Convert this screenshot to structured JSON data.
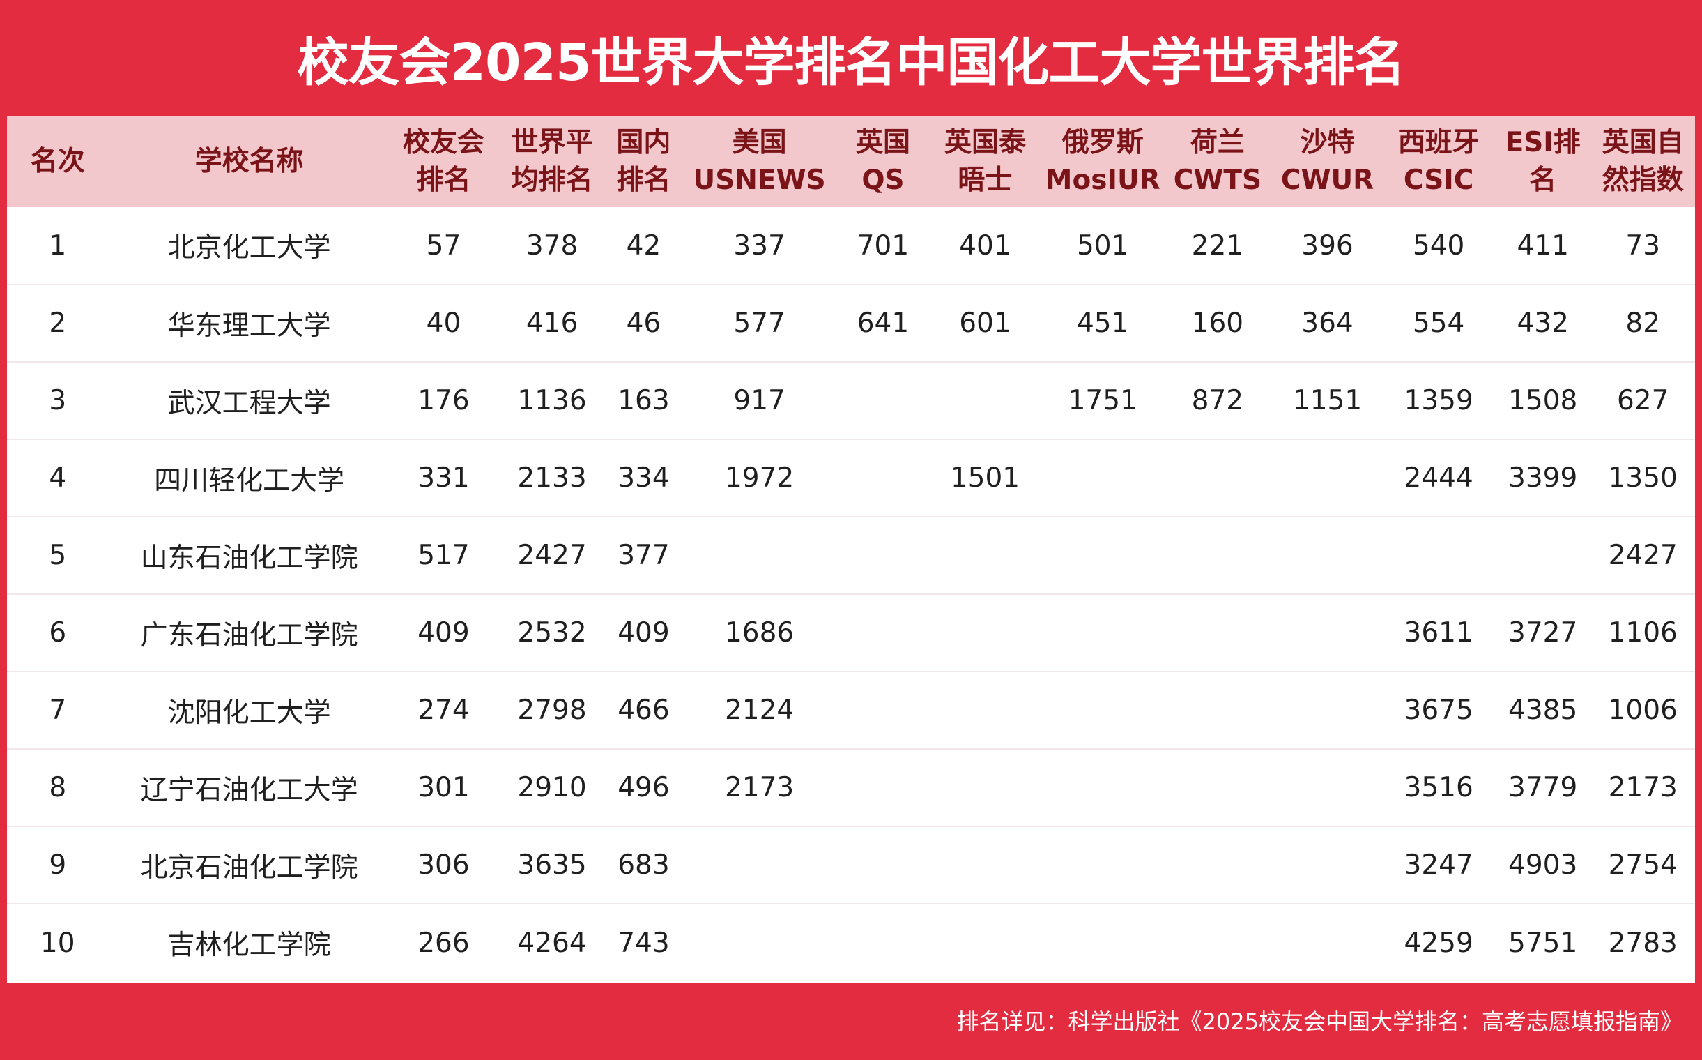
{
  "title": "校友会2025世界大学排名中国化工大学世界排名",
  "header": [
    [
      "名次"
    ],
    [
      "学校名称"
    ],
    [
      "校友会",
      "排名"
    ],
    [
      "世界平",
      "均排名"
    ],
    [
      "国内",
      "排名"
    ],
    [
      "美国",
      "USNEWS"
    ],
    [
      "英国",
      "QS"
    ],
    [
      "英国泰",
      "晤士"
    ],
    [
      "俄罗斯",
      "MosIUR"
    ],
    [
      "荷兰",
      "CWTS"
    ],
    [
      "沙特",
      "CWUR"
    ],
    [
      "西班牙",
      "CSIC"
    ],
    [
      "ESI排",
      "名"
    ],
    [
      "英国自",
      "然指数"
    ]
  ],
  "rows": [
    [
      "1",
      "北京化工大学",
      "57",
      "378",
      "42",
      "337",
      "701",
      "401",
      "501",
      "221",
      "396",
      "540",
      "411",
      "73"
    ],
    [
      "2",
      "华东理工大学",
      "40",
      "416",
      "46",
      "577",
      "641",
      "601",
      "451",
      "160",
      "364",
      "554",
      "432",
      "82"
    ],
    [
      "3",
      "武汉工程大学",
      "176",
      "1136",
      "163",
      "917",
      "",
      "",
      "1751",
      "872",
      "1151",
      "1359",
      "1508",
      "627"
    ],
    [
      "4",
      "四川轻化工大学",
      "331",
      "2133",
      "334",
      "1972",
      "",
      "1501",
      "",
      "",
      "",
      "2444",
      "3399",
      "1350"
    ],
    [
      "5",
      "山东石油化工学院",
      "517",
      "2427",
      "377",
      "",
      "",
      "",
      "",
      "",
      "",
      "",
      "",
      "2427"
    ],
    [
      "6",
      "广东石油化工学院",
      "409",
      "2532",
      "409",
      "1686",
      "",
      "",
      "",
      "",
      "",
      "3611",
      "3727",
      "1106"
    ],
    [
      "7",
      "沈阳化工大学",
      "274",
      "2798",
      "466",
      "2124",
      "",
      "",
      "",
      "",
      "",
      "3675",
      "4385",
      "1006"
    ],
    [
      "8",
      "辽宁石油化工大学",
      "301",
      "2910",
      "496",
      "2173",
      "",
      "",
      "",
      "",
      "",
      "3516",
      "3779",
      "2173"
    ],
    [
      "9",
      "北京石油化工学院",
      "306",
      "3635",
      "683",
      "",
      "",
      "",
      "",
      "",
      "",
      "3247",
      "4903",
      "2754"
    ],
    [
      "10",
      "吉林化工学院",
      "266",
      "4264",
      "743",
      "",
      "",
      "",
      "",
      "",
      "",
      "4259",
      "5751",
      "2783"
    ]
  ],
  "footer": "排名详见：科学出版社《2025校友会中国大学排名：高考志愿填报指南》",
  "colors": {
    "background": "#e32c40",
    "header_bg": "#f2c8cc",
    "header_text": "#7a1418",
    "cell_text": "#1f1f1f"
  }
}
